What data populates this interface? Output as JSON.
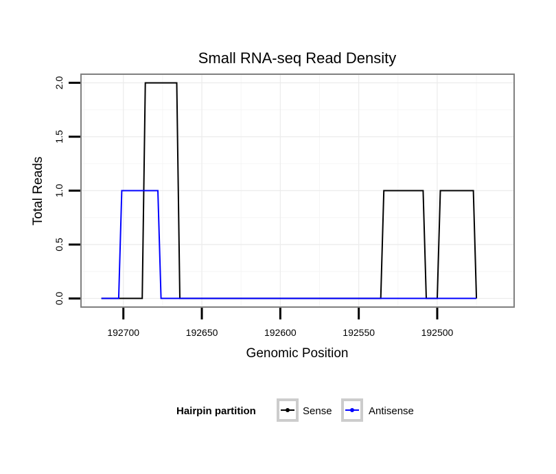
{
  "chart_data": {
    "type": "line",
    "title": "Small RNA-seq Read Density",
    "xlabel": "Genomic Position",
    "ylabel": "Total Reads",
    "x_reversed": true,
    "xlim": [
      192727,
      192451
    ],
    "ylim": [
      -0.08,
      2.08
    ],
    "x_ticks": [
      192700,
      192650,
      192600,
      192550,
      192500
    ],
    "x_tick_labels": [
      "192700",
      "192650",
      "192600",
      "192550",
      "192500"
    ],
    "y_ticks": [
      0,
      0.5,
      1,
      1.5,
      2
    ],
    "y_tick_labels": [
      "0.0",
      "0.5",
      "1.0",
      "1.5",
      "2.0"
    ],
    "grid": true,
    "legend": {
      "title": "Hairpin partition",
      "position": "bottom",
      "entries": [
        "Sense",
        "Antisense"
      ]
    },
    "series": [
      {
        "name": "Sense",
        "color": "#000000",
        "x": [
          192714,
          192688,
          192686,
          192666,
          192664,
          192536,
          192534,
          192509,
          192507,
          192500,
          192498,
          192477,
          192475
        ],
        "y": [
          0,
          0,
          2,
          2,
          0,
          0,
          1,
          1,
          0,
          0,
          1,
          1,
          0
        ]
      },
      {
        "name": "Antisense",
        "color": "#0000ff",
        "x": [
          192714,
          192703,
          192701,
          192678,
          192676,
          192475
        ],
        "y": [
          0,
          0,
          1,
          1,
          0,
          0
        ]
      }
    ]
  }
}
